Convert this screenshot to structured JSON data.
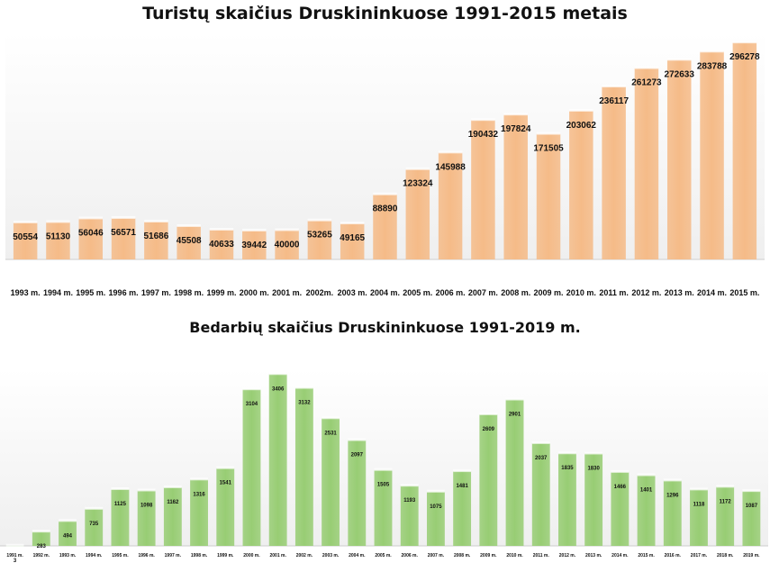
{
  "chart_data": [
    {
      "type": "bar",
      "title": "Turistų skaičius Druskininkuose 1991-2015 metais",
      "categories": [
        "1993 m.",
        "1994 m.",
        "1995 m.",
        "1996 m.",
        "1997 m.",
        "1998 m.",
        "1999 m.",
        "2000 m.",
        "2001 m.",
        "2002m.",
        "2003 m.",
        "2004 m.",
        "2005 m.",
        "2006 m.",
        "2007 m.",
        "2008 m.",
        "2009 m.",
        "2010 m.",
        "2011 m.",
        "2012 m.",
        "2013 m.",
        "2014 m.",
        "2015 m."
      ],
      "values": [
        50554,
        51130,
        56046,
        56571,
        51686,
        45508,
        40633,
        39442,
        40000,
        53265,
        49165,
        88890,
        123324,
        145988,
        190432,
        197824,
        171505,
        203062,
        236117,
        261273,
        272633,
        283788,
        296278
      ],
      "bar_color": "#f5bb88",
      "xlabel": "",
      "ylabel": "",
      "ylim": [
        0,
        310000
      ],
      "grid": false
    },
    {
      "type": "bar",
      "title": "Bedarbių skaičius Druskininkuose 1991-2019 m.",
      "categories": [
        "1991 m.",
        "1992 m.",
        "1993 m.",
        "1994 m.",
        "1995 m.",
        "1996 m.",
        "1997 m.",
        "1998 m.",
        "1999 m.",
        "2000 m.",
        "2001 m.",
        "2002 m.",
        "2003 m.",
        "2004 m.",
        "2005 m.",
        "2006 m.",
        "2007 m.",
        "2008 m.",
        "2009 m.",
        "2010 m.",
        "2011 m.",
        "2012 m.",
        "2013 m.",
        "2014 m.",
        "2015 m.",
        "2016 m.",
        "2017 m.",
        "2018 m.",
        "2019 m."
      ],
      "values": [
        3,
        283,
        494,
        735,
        1125,
        1098,
        1162,
        1316,
        1541,
        3104,
        3406,
        3132,
        2531,
        2097,
        1505,
        1193,
        1075,
        1481,
        2609,
        2901,
        2037,
        1835,
        1830,
        1466,
        1401,
        1296,
        1118,
        1172,
        1087
      ],
      "bar_color": "#98cd74",
      "xlabel": "",
      "ylabel": "",
      "ylim": [
        0,
        3500
      ],
      "grid": false
    }
  ]
}
